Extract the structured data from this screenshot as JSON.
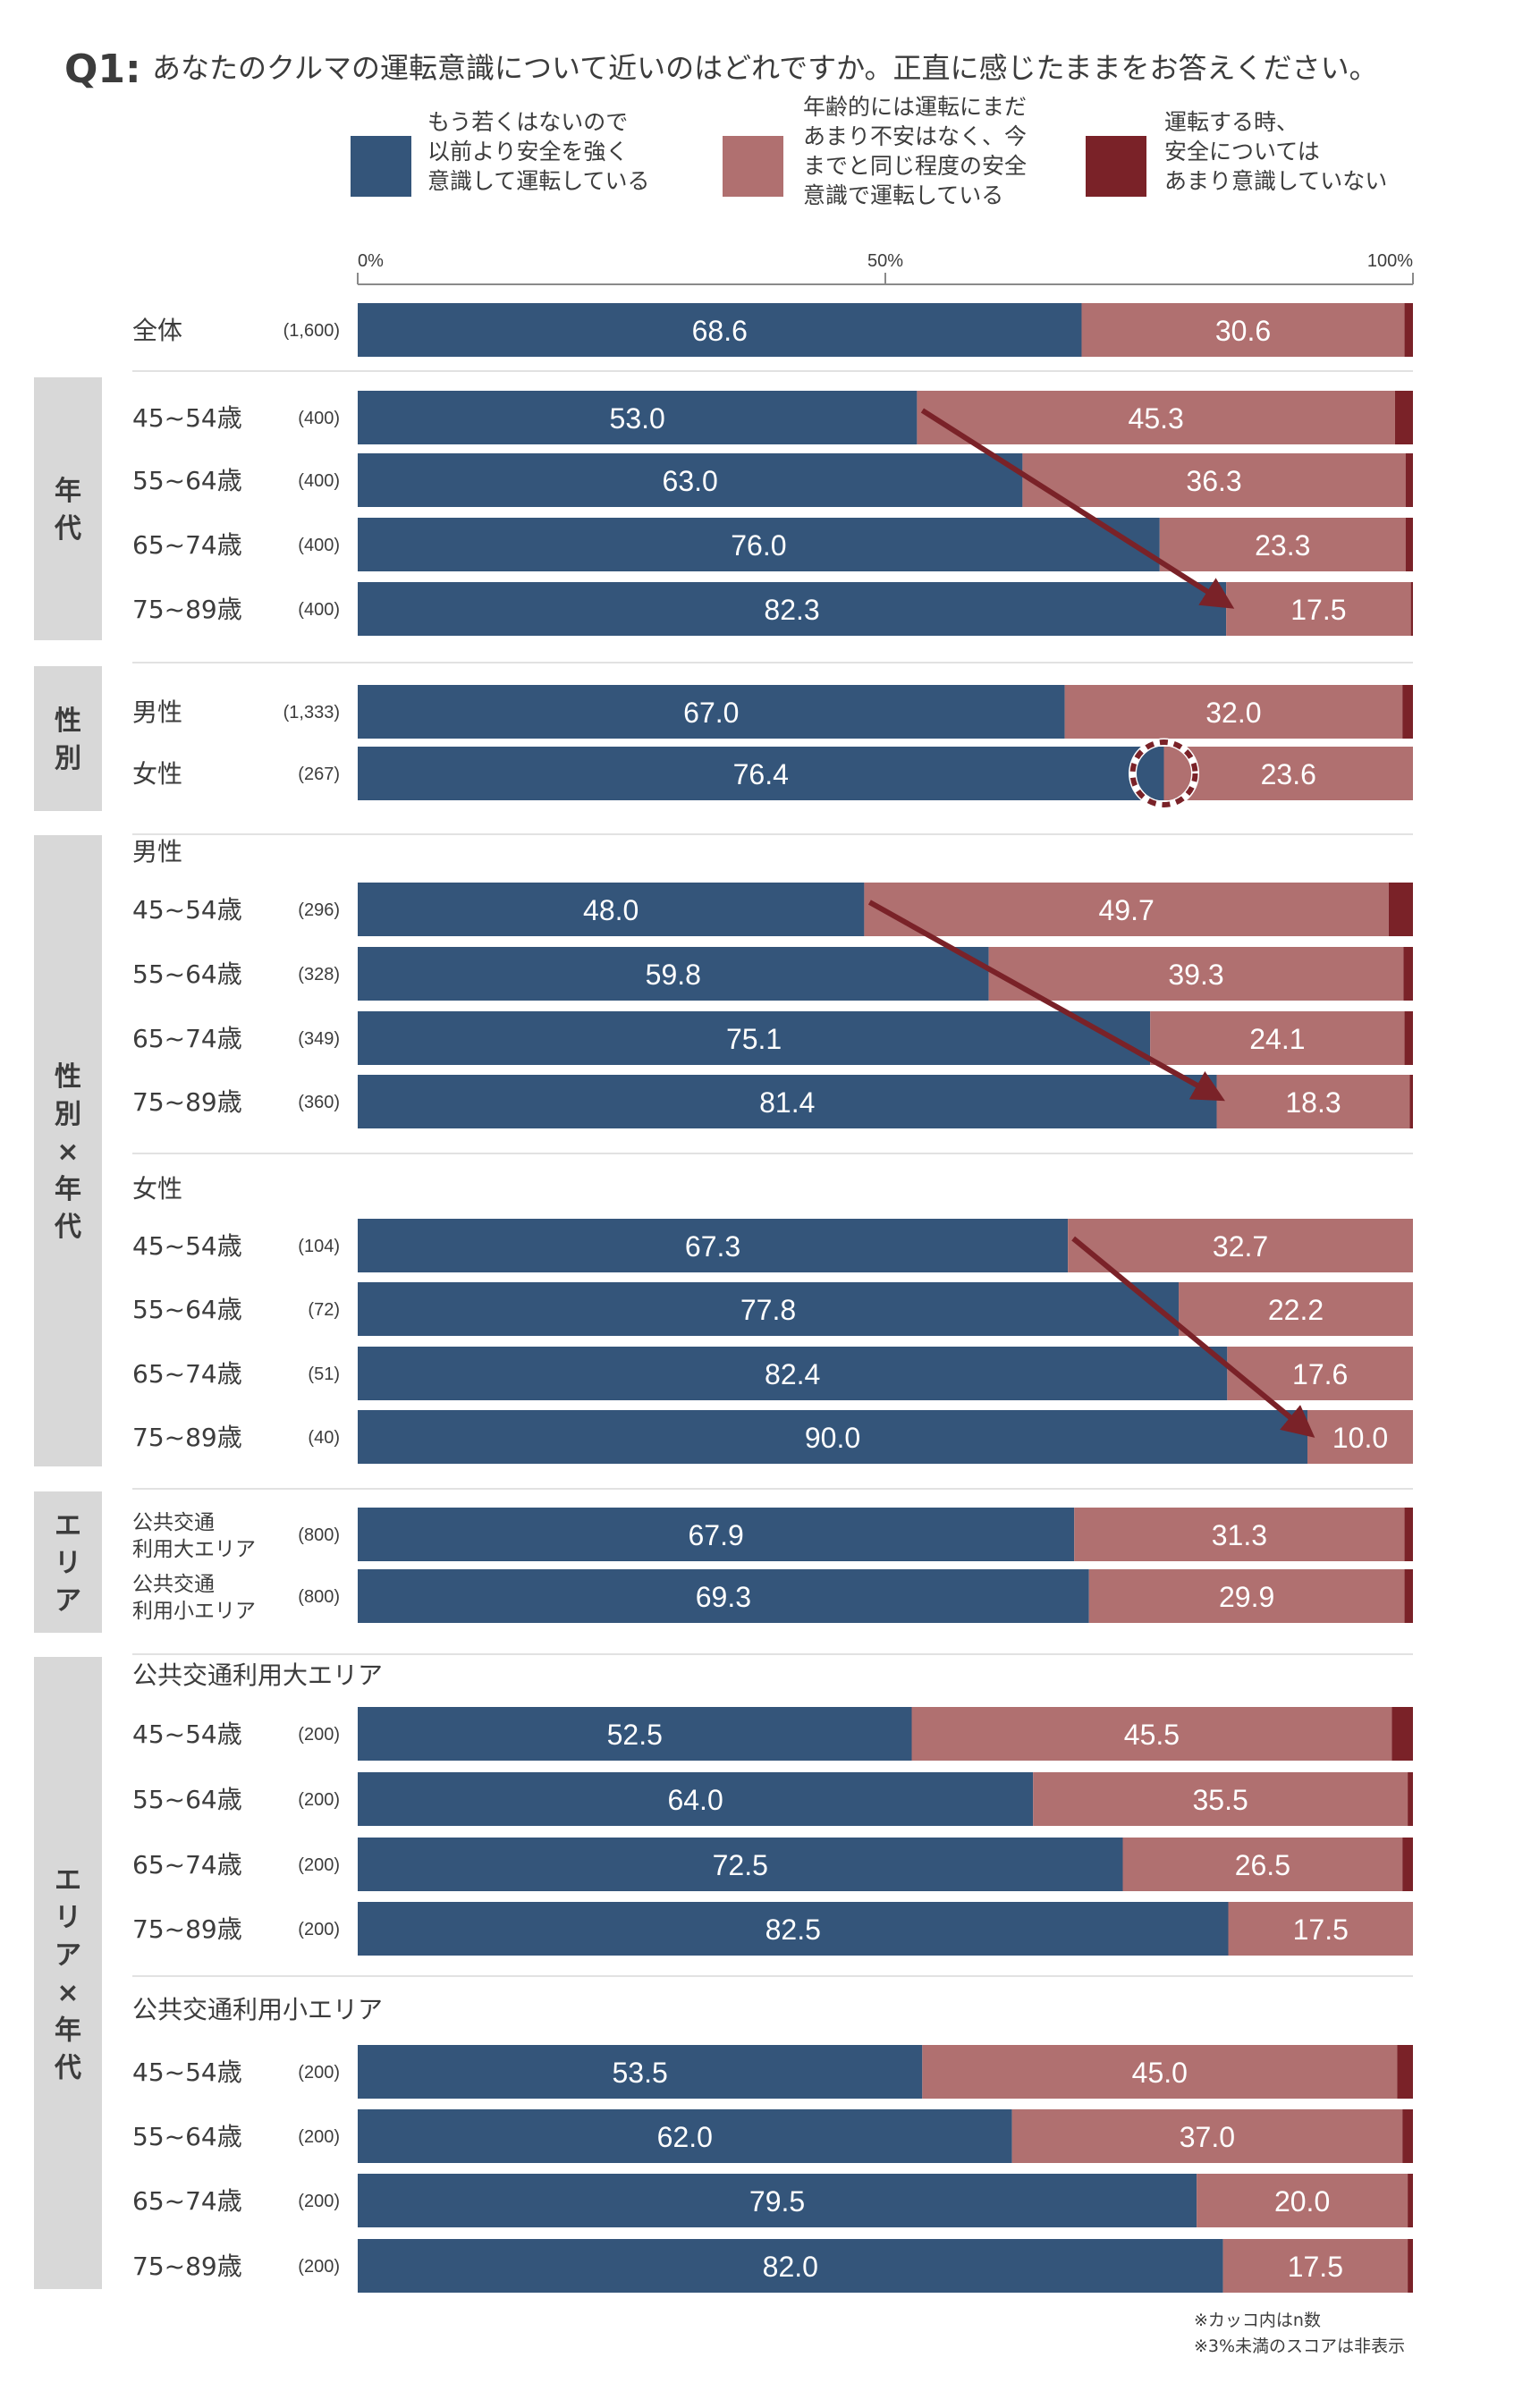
{
  "chart_data": {
    "type": "bar",
    "stacked": true,
    "orientation": "horizontal",
    "question_no": "Q1:",
    "title": "あなたのクルマの運転意識について近いのはどれですか。正直に感じたままをお答えください。",
    "legend": [
      {
        "name": "もう若くはないので以前より安全を強く意識して運転している",
        "lines": [
          "もう若くはないので",
          "以前より安全を強く",
          "意識して運転している"
        ],
        "color": "#34557a"
      },
      {
        "name": "年齢的には運転にまだあまり不安はなく、今までと同じ程度の安全意識で運転している",
        "lines": [
          "年齢的には運転にまだ",
          "あまり不安はなく、今",
          "までと同じ程度の安全",
          "意識で運転している"
        ],
        "color": "#b07070"
      },
      {
        "name": "運転する時、安全についてはあまり意識していない",
        "lines": [
          "運転する時、",
          "安全については",
          "あまり意識していない"
        ],
        "color": "#7a2228"
      }
    ],
    "axis_ticks": [
      "0%",
      "50%",
      "100%"
    ],
    "xlim": [
      0,
      100
    ],
    "label_threshold": 3,
    "groups": [
      {
        "label": "",
        "rows": [
          {
            "label": "全体",
            "n": "(1,600)",
            "values": [
              68.6,
              30.6,
              0.8
            ]
          }
        ]
      },
      {
        "label": "年代",
        "rows": [
          {
            "label": "45~54歳",
            "n": "(400)",
            "values": [
              53.0,
              45.3,
              1.7
            ]
          },
          {
            "label": "55~64歳",
            "n": "(400)",
            "values": [
              63.0,
              36.3,
              0.7
            ]
          },
          {
            "label": "65~74歳",
            "n": "(400)",
            "values": [
              76.0,
              23.3,
              0.7
            ]
          },
          {
            "label": "75~89歳",
            "n": "(400)",
            "values": [
              82.3,
              17.5,
              0.2
            ]
          }
        ]
      },
      {
        "label": "性別",
        "rows": [
          {
            "label": "男性",
            "n": "(1,333)",
            "values": [
              67.0,
              32.0,
              1.0
            ]
          },
          {
            "label": "女性",
            "n": "(267)",
            "values": [
              76.4,
              23.6,
              0.0
            ]
          }
        ]
      },
      {
        "label": "性別×年代",
        "subgroups": [
          {
            "label": "男性",
            "rows": [
              {
                "label": "45~54歳",
                "n": "(296)",
                "values": [
                  48.0,
                  49.7,
                  2.3
                ]
              },
              {
                "label": "55~64歳",
                "n": "(328)",
                "values": [
                  59.8,
                  39.3,
                  0.9
                ]
              },
              {
                "label": "65~74歳",
                "n": "(349)",
                "values": [
                  75.1,
                  24.1,
                  0.8
                ]
              },
              {
                "label": "75~89歳",
                "n": "(360)",
                "values": [
                  81.4,
                  18.3,
                  0.3
                ]
              }
            ]
          },
          {
            "label": "女性",
            "rows": [
              {
                "label": "45~54歳",
                "n": "(104)",
                "values": [
                  67.3,
                  32.7,
                  0.0
                ]
              },
              {
                "label": "55~64歳",
                "n": "(72)",
                "values": [
                  77.8,
                  22.2,
                  0.0
                ]
              },
              {
                "label": "65~74歳",
                "n": "(51)",
                "values": [
                  82.4,
                  17.6,
                  0.0
                ]
              },
              {
                "label": "75~89歳",
                "n": "(40)",
                "values": [
                  90.0,
                  10.0,
                  0.0
                ]
              }
            ]
          }
        ]
      },
      {
        "label": "エリア",
        "rows": [
          {
            "label": "公共交通利用大エリア",
            "label_lines": [
              "公共交通",
              "利用大エリア"
            ],
            "n": "(800)",
            "values": [
              67.9,
              31.3,
              0.8
            ]
          },
          {
            "label": "公共交通利用小エリア",
            "label_lines": [
              "公共交通",
              "利用小エリア"
            ],
            "n": "(800)",
            "values": [
              69.3,
              29.9,
              0.8
            ]
          }
        ]
      },
      {
        "label": "エリア×年代",
        "subgroups": [
          {
            "label": "公共交通利用大エリア",
            "rows": [
              {
                "label": "45~54歳",
                "n": "(200)",
                "values": [
                  52.5,
                  45.5,
                  2.0
                ]
              },
              {
                "label": "55~64歳",
                "n": "(200)",
                "values": [
                  64.0,
                  35.5,
                  0.5
                ]
              },
              {
                "label": "65~74歳",
                "n": "(200)",
                "values": [
                  72.5,
                  26.5,
                  1.0
                ]
              },
              {
                "label": "75~89歳",
                "n": "(200)",
                "values": [
                  82.5,
                  17.5,
                  0.0
                ]
              }
            ]
          },
          {
            "label": "公共交通利用小エリア",
            "rows": [
              {
                "label": "45~54歳",
                "n": "(200)",
                "values": [
                  53.5,
                  45.0,
                  1.5
                ]
              },
              {
                "label": "55~64歳",
                "n": "(200)",
                "values": [
                  62.0,
                  37.0,
                  1.0
                ]
              },
              {
                "label": "65~74歳",
                "n": "(200)",
                "values": [
                  79.5,
                  20.0,
                  0.5
                ]
              },
              {
                "label": "75~89歳",
                "n": "(200)",
                "values": [
                  82.0,
                  17.5,
                  0.5
                ]
              }
            ]
          }
        ]
      }
    ],
    "notes": [
      "※カッコ内はn数",
      "※3%未満のスコアは非表示"
    ],
    "colors": {
      "side_band": "#d8d8d8",
      "arrow": "#7a2228",
      "text": "#3c3c3c",
      "separator": "#e2e2e2"
    }
  }
}
